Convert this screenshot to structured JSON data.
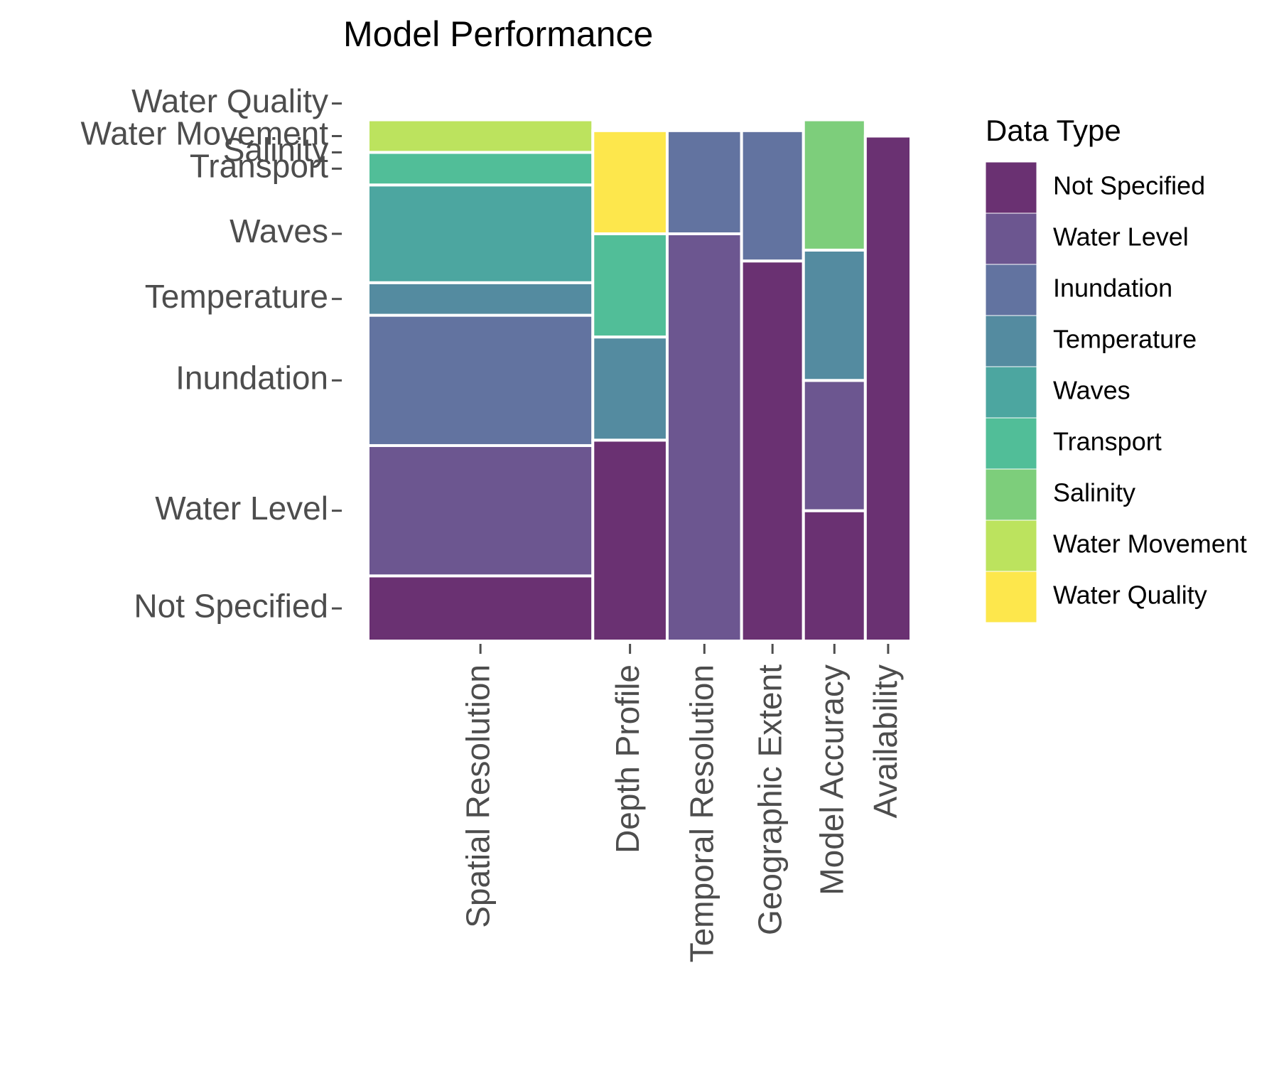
{
  "chart_data": {
    "type": "mosaic",
    "title": "Model Performance",
    "xlabel": "",
    "ylabel": "",
    "categories": [
      "Spatial Resolution",
      "Depth Profile",
      "Temporal Resolution",
      "Geographic Extent",
      "Model Accuracy",
      "Availability"
    ],
    "column_shares": [
      0.414,
      0.137,
      0.137,
      0.114,
      0.114,
      0.084
    ],
    "data_types": [
      "Not Specified",
      "Water Level",
      "Inundation",
      "Temperature",
      "Waves",
      "Transport",
      "Salinity",
      "Water Movement",
      "Water Quality"
    ],
    "colors": [
      "#6A3172",
      "#6C5690",
      "#6273A0",
      "#548BA0",
      "#4CA6A0",
      "#51BE98",
      "#7DCE7B",
      "#BCE35E",
      "#FDE74C"
    ],
    "proportions": [
      [
        0.12,
        0.24,
        0.24,
        0.06,
        0.18,
        0.06,
        0.0,
        0.06,
        0.0
      ],
      [
        0.37,
        0.0,
        0.0,
        0.19,
        0.0,
        0.19,
        0.0,
        0.0,
        0.19
      ],
      [
        0.0,
        0.75,
        0.19,
        0.0,
        0.0,
        0.0,
        0.0,
        0.0,
        0.0
      ],
      [
        0.7,
        0.0,
        0.24,
        0.0,
        0.0,
        0.0,
        0.0,
        0.0,
        0.0
      ],
      [
        0.24,
        0.24,
        0.0,
        0.24,
        0.0,
        0.0,
        0.24,
        0.0,
        0.0
      ],
      [
        0.93,
        0.0,
        0.0,
        0.0,
        0.0,
        0.0,
        0.0,
        0.0,
        0.0
      ]
    ],
    "y_tick_labels": [
      "Not Specified",
      "Water Level",
      "Inundation",
      "Temperature",
      "Waves",
      "Transport",
      "Salinity",
      "Water Movement",
      "Water Quality"
    ],
    "legend": {
      "title": "Data Type",
      "position": "right",
      "entries": [
        "Not Specified",
        "Water Level",
        "Inundation",
        "Temperature",
        "Waves",
        "Transport",
        "Salinity",
        "Water Movement",
        "Water Quality"
      ]
    },
    "grid": false
  }
}
